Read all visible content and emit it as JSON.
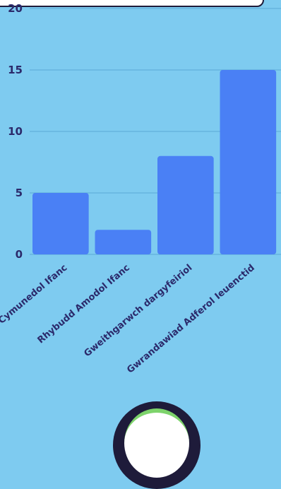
{
  "chart_data": {
    "type": "bar",
    "categories": [
      "Cymunedol Ifanc",
      "Rhybudd Amodol Ifanc",
      "Gweithgarwch dargyfeiriol",
      "Gwrandawiad Adferol Ieuenctid"
    ],
    "values": [
      5,
      2,
      8,
      15
    ],
    "ylim": [
      0,
      20
    ],
    "yticks": [
      0,
      5,
      10,
      15,
      20
    ],
    "grid": true,
    "title": "",
    "xlabel": "",
    "ylabel": ""
  },
  "colors": {
    "background": "#7ecbf0",
    "bar": "#4a80f5",
    "text": "#2b2a6b",
    "grid": "#5aa8d6"
  }
}
